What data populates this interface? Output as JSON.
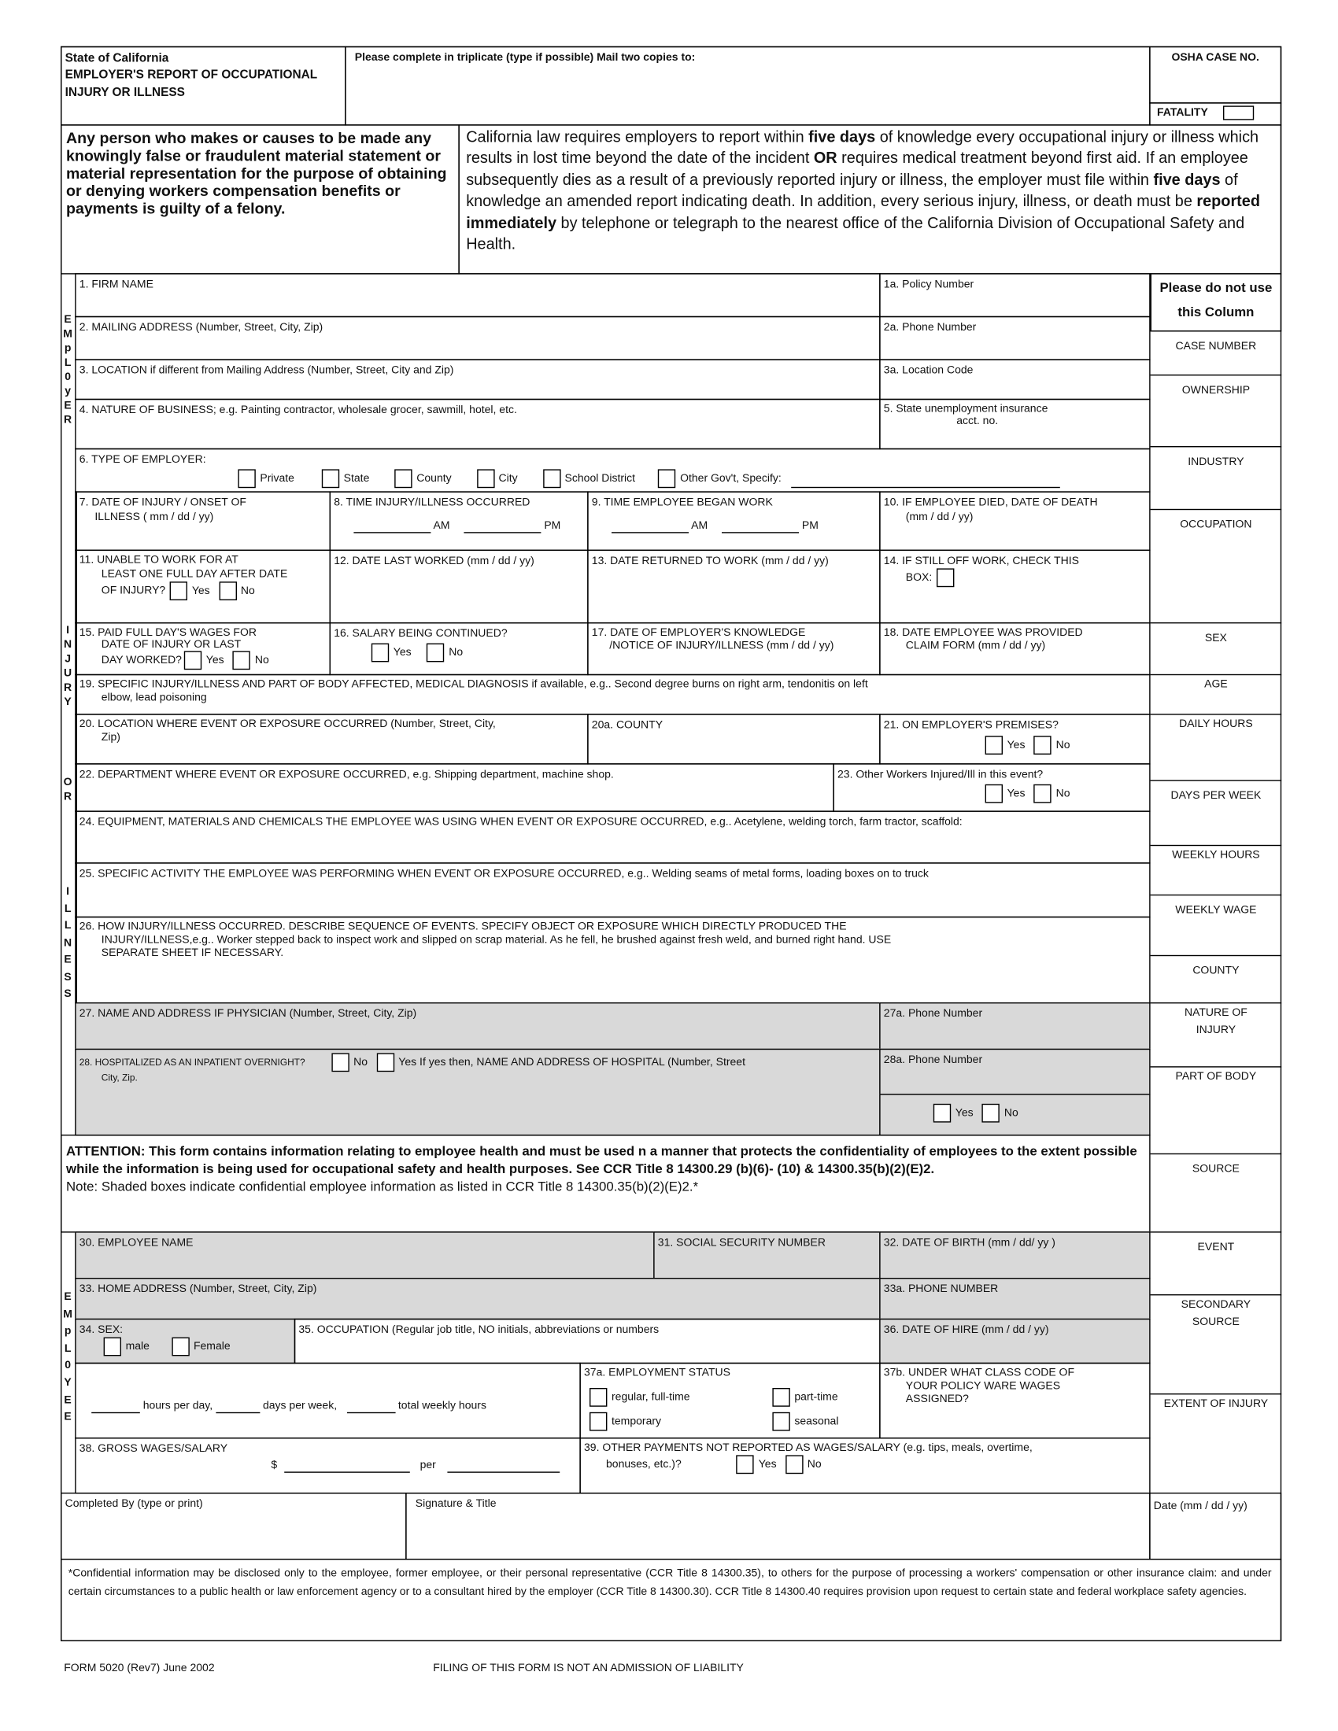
{
  "header": {
    "state": "State of California",
    "title": "EMPLOYER'S REPORT OF OCCUPATIONAL INJURY OR ILLNESS",
    "instructions": "Please complete in triplicate (type if possible) Mail  two copies to:",
    "osha_case_no": "OSHA CASE NO.",
    "fatality": "FATALITY"
  },
  "warning": "Any person who makes or causes to be made any knowingly false or fraudulent material statement or material representation for the purpose of obtaining or denying workers compensation benefits or payments is guilty of a felony.",
  "notice": {
    "p1": "California law requires employers to report within ",
    "b1": "five days",
    "p2": " of knowledge every occupational injury or illness which results in lost time beyond the date of the incident ",
    "b2": "OR",
    "p3": " requires medical treatment beyond first aid. If an employee subsequently dies as a result of a previously reported injury or illness, the employer must file within ",
    "b3": "five days",
    "p4": " of knowledge an amended report indicating death. In addition, every serious injury, illness, or death must be ",
    "b4": "reported immediately",
    "p5": " by telephone or telegraph to the nearest office of the California Division of Occupational Safety and Health."
  },
  "side_labels": {
    "employer": [
      "E",
      "M",
      "p",
      "L",
      "0",
      "y",
      "E",
      "R"
    ],
    "injury": [
      "I",
      "N",
      "J",
      "U",
      "R",
      "Y"
    ],
    "or": [
      "O",
      "R"
    ],
    "illness": [
      "I",
      "L",
      "L",
      "N",
      "E",
      "S",
      "S"
    ],
    "employee": [
      "E",
      "M",
      "p",
      "L",
      "0",
      "Y",
      "E",
      "E"
    ]
  },
  "employer": {
    "f1": "1. FIRM NAME",
    "f1a": "1a. Policy Number",
    "f2": "2. MAILING ADDRESS (Number, Street, City, Zip)",
    "f2a": "2a. Phone Number",
    "f3": "3. LOCATION  if  different  from  Mailing  Address  (Number, Street, City and Zip)",
    "f3a": "3a. Location Code",
    "f4": "4. NATURE OF BUSINESS;  e.g. Painting contractor, wholesale grocer, sawmill, hotel, etc.",
    "f5a": "5. State unemployment insurance",
    "f5b": "acct. no.",
    "f6": "6. TYPE OF EMPLOYER:",
    "types": [
      "Private",
      "State",
      "County",
      "City",
      "School District",
      "Other Gov't, Specify:"
    ]
  },
  "injury": {
    "f7a": "7. DATE OF INJURY / ONSET OF",
    "f7b": "ILLNESS ( mm / dd / yy)",
    "f8": "8. TIME INJURY/ILLNESS OCCURRED",
    "f9": "9. TIME EMPLOYEE BEGAN WORK",
    "am": "AM",
    "pm": "PM",
    "f10a": "10. IF EMPLOYEE DIED, DATE OF DEATH",
    "f10b": "(mm / dd / yy)",
    "f11a": "11. UNABLE TO WORK FOR AT",
    "f11b": "LEAST ONE FULL DAY AFTER DATE",
    "f11c": "OF INJURY?",
    "f12": "12. DATE  LAST WORKED  (mm / dd / yy)",
    "f13": "13. DATE RETURNED TO WORK (mm / dd / yy)",
    "f14a": "14. IF STILL OFF WORK, CHECK THIS",
    "f14b": "BOX:",
    "f15a": "15.  PAID FULL DAY'S WAGES FOR",
    "f15b": "DATE OF INJURY OR LAST",
    "f15c": "DAY WORKED?",
    "f16": "16. SALARY BEING CONTINUED?",
    "f17a": "17. DATE OF EMPLOYER'S KNOWLEDGE",
    "f17b": "/NOTICE OF INJURY/ILLNESS (mm / dd / yy)",
    "f18a": "18. DATE EMPLOYEE WAS PROVIDED",
    "f18b": "CLAIM FORM (mm / dd / yy)",
    "f19a": "19. SPECIFIC INJURY/ILLNESS AND PART OF BODY AFFECTED, MEDICAL DIAGNOSIS if available, e.g.. Second degree burns on right arm, tendonitis on left",
    "f19b": "elbow, lead poisoning",
    "f20a": "20. LOCATION WHERE EVENT OR EXPOSURE OCCURRED (Number, Street, City,",
    "f20b": "Zip)",
    "f20c": "20a. COUNTY",
    "f21": "21. ON  EMPLOYER'S  PREMISES?",
    "f22": "22. DEPARTMENT WHERE EVENT OR EXPOSURE OCCURRED, e.g. Shipping department, machine shop.",
    "f23": "23. Other Workers Injured/Ill in this event?",
    "f24": "24. EQUIPMENT, MATERIALS AND CHEMICALS THE EMPLOYEE WAS USING WHEN EVENT OR EXPOSURE OCCURRED, e.g.. Acetylene, welding torch, farm tractor, scaffold:",
    "f25": "25. SPECIFIC ACTIVITY THE EMPLOYEE WAS PERFORMING WHEN EVENT OR EXPOSURE OCCURRED, e.g.. Welding seams of metal forms, loading boxes on to truck",
    "f26a": "26. HOW INJURY/ILLNESS OCCURRED. DESCRIBE SEQUENCE OF EVENTS. SPECIFY OBJECT OR EXPOSURE WHICH DIRECTLY PRODUCED THE",
    "f26b": "INJURY/ILLNESS,e.g.. Worker stepped back to inspect work and slipped on scrap material. As he fell, he brushed against fresh weld, and burned right hand. USE",
    "f26c": "SEPARATE SHEET IF NECESSARY.",
    "f27": "27. NAME AND ADDRESS IF PHYSICIAN (Number, Street, City,  Zip)",
    "f27a": "27a. Phone Number",
    "f28a": "28. HOSPITALIZED AS AN INPATIENT OVERNIGHT?",
    "f28b": "If yes then, NAME AND ADDRESS OF HOSPITAL (Number, Street",
    "f28c": "City, Zip.",
    "f28d": "28a. Phone Number"
  },
  "yes": "Yes",
  "no": "No",
  "attention": {
    "bold_lead": "ATTENTION:",
    "text": " This form contains information relating to employee health and must be used n a manner that protects the confidentiality of employees to the extent possible while the information is being used for occupational safety and health purposes. See CCR Title 8 14300.29 (b)(6)- (10) & 14300.35(b)(2)(E)2.",
    "note": "Note: Shaded boxes indicate confidential employee information as listed in CCR Title 8 14300.35(b)(2)(E)2.*"
  },
  "employee": {
    "f30": "30. EMPLOYEE NAME",
    "f31": "31. SOCIAL SECURITY NUMBER",
    "f32": "32. DATE OF BIRTH  (mm / dd/ yy )",
    "f33": "33. HOME ADDRESS (Number, Street, City, Zip)",
    "f33a": "33a. PHONE NUMBER",
    "f34": "34. SEX:",
    "male": "male",
    "female": "Female",
    "f35": "35. OCCUPATION (Regular job title, NO initials, abbreviations or numbers",
    "f36": "36. DATE OF HIRE (mm / dd / yy)",
    "hours_per_day": "hours per day,",
    "days_per_week": "days per week,",
    "total_weekly_hours": "total weekly hours",
    "f37a": "37a.  EMPLOYMENT  STATUS",
    "status": [
      "regular, full-time",
      "part-time",
      "temporary",
      "seasonal"
    ],
    "f37b1": "37b. UNDER WHAT CLASS CODE OF",
    "f37b2": "YOUR POLICY  WARE WAGES",
    "f37b3": "ASSIGNED?",
    "f38": "38. GROSS WAGES/SALARY",
    "dollar": "$",
    "per": "per",
    "f39a": "39. OTHER PAYMENTS NOT REPORTED AS WAGES/SALARY (e.g. tips, meals, overtime,",
    "f39b": "bonuses, etc.)?"
  },
  "signature": {
    "completed_by": "Completed By (type or print)",
    "signature_title": "Signature & Title",
    "date": "Date (mm / dd / yy)"
  },
  "footnote": "*Confidential information may be disclosed only to the employee, former employee, or their personal representative (CCR Title 8 14300.35), to others for the purpose of processing a workers' compensation or other insurance claim: and under certain circumstances to a public health or law enforcement agency or to a consultant hired by the employer (CCR Title 8 14300.30). CCR Title 8 14300.40 requires provision upon request to certain state and federal workplace safety agencies.",
  "footer": {
    "form_id": "FORM 5020 (Rev7) June 2002",
    "liability": "FILING OF THIS FORM IS NOT AN ADMISSION OF LIABILITY"
  },
  "office_column": {
    "header": "Please do not use this Column",
    "items": [
      "CASE NUMBER",
      "OWNERSHIP",
      "INDUSTRY",
      "OCCUPATION",
      "SEX",
      "AGE",
      "DAILY HOURS",
      "DAYS PER WEEK",
      "WEEKLY HOURS",
      "WEEKLY WAGE",
      "COUNTY",
      "NATURE OF INJURY",
      "PART OF BODY",
      "SOURCE",
      "EVENT",
      "SECONDARY SOURCE",
      "EXTENT OF INJURY"
    ]
  },
  "colors": {
    "shade": "#d9d9d9",
    "ink": "#000000"
  }
}
